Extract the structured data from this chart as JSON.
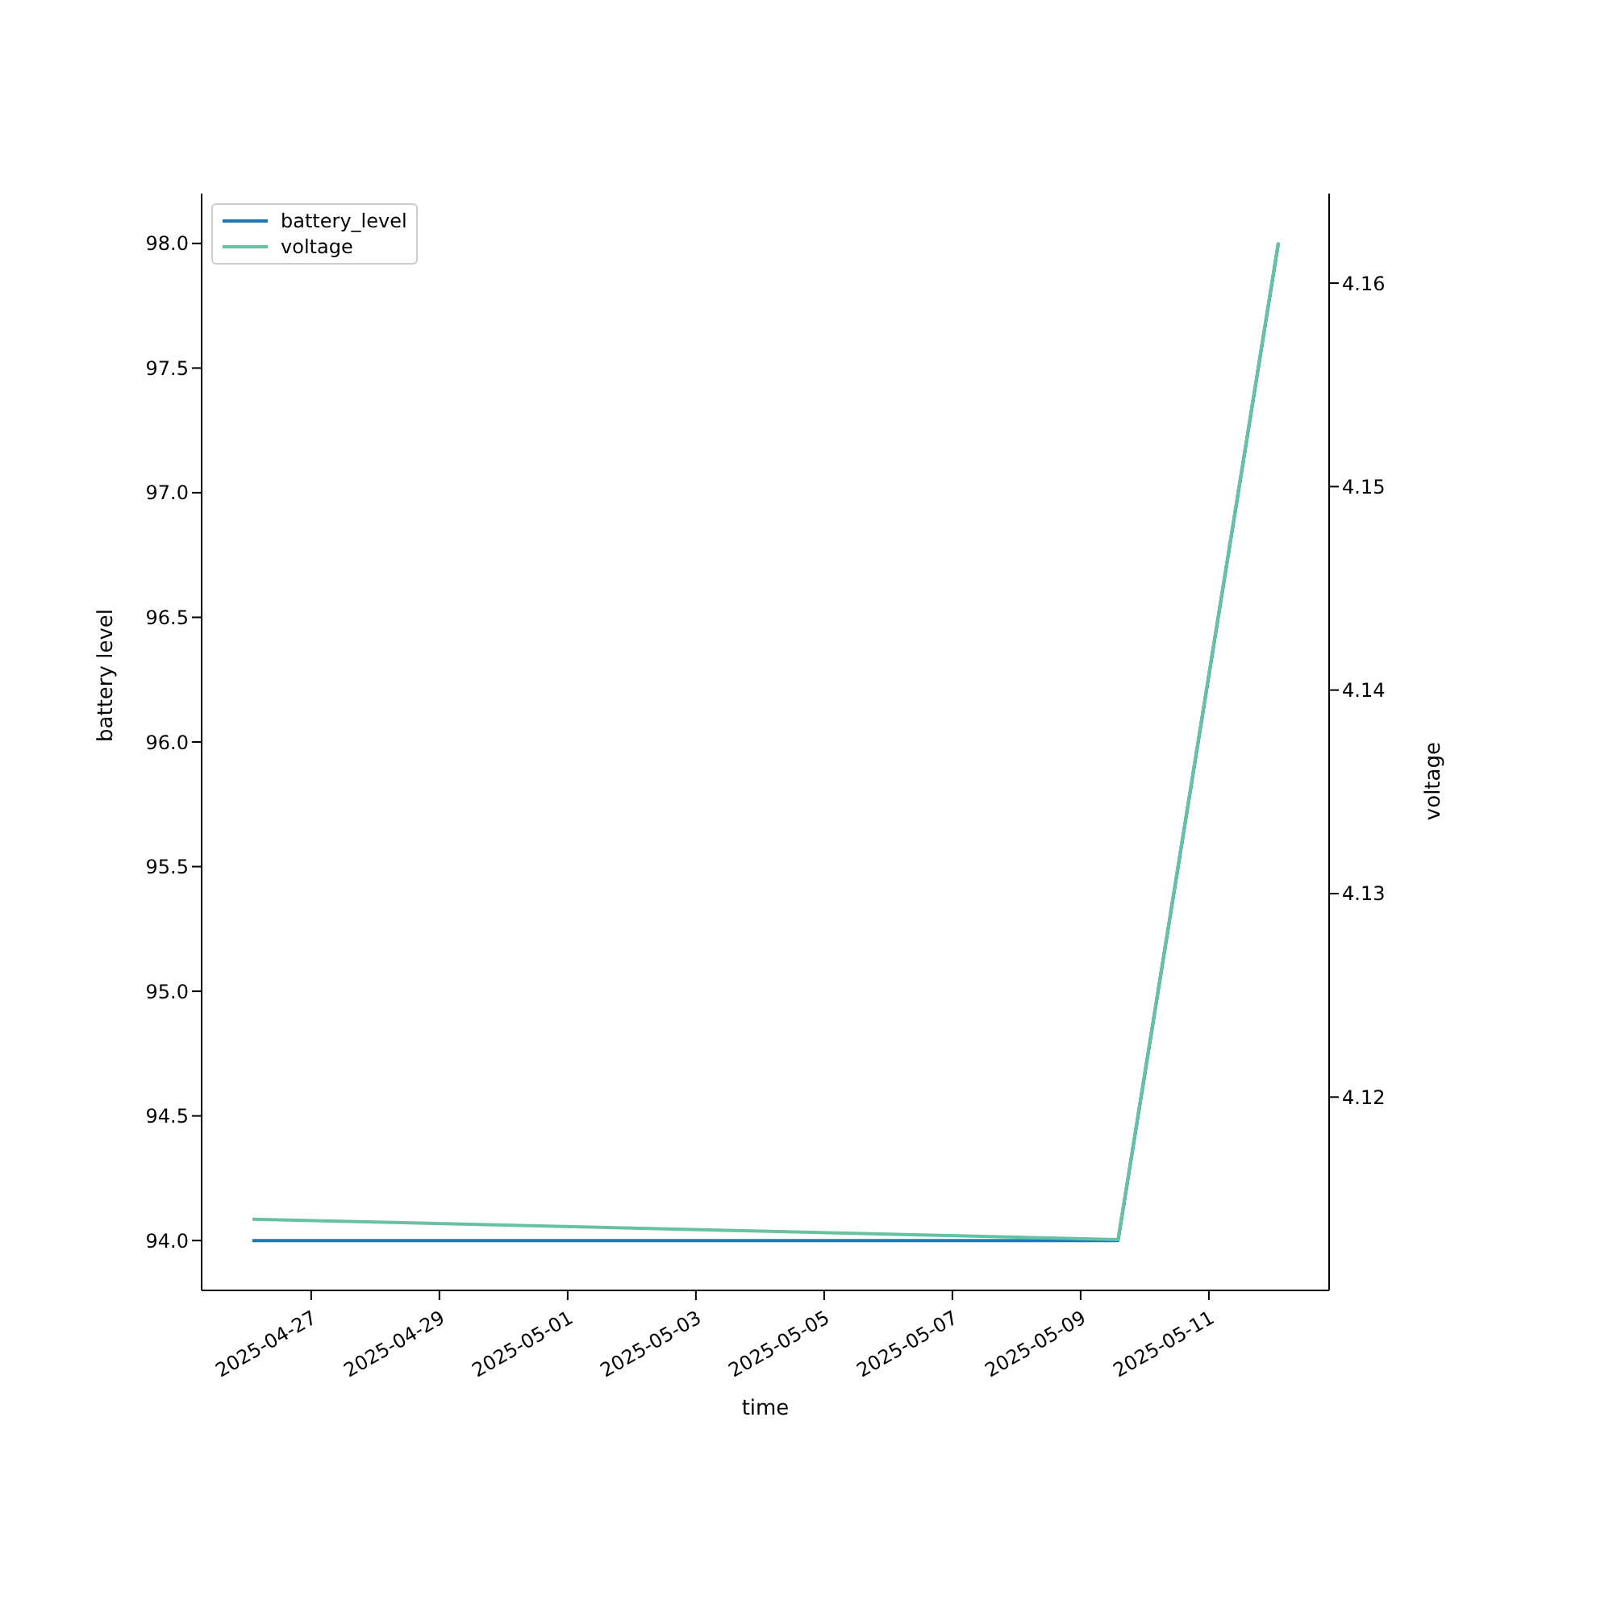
{
  "chart_data": {
    "type": "line",
    "xlabel": "time",
    "ylabel": "battery level",
    "y2label": "voltage",
    "x": [
      "2025-04-26T02:00",
      "2025-05-09T14:00",
      "2025-05-12T02:00"
    ],
    "series": [
      {
        "name": "battery_level",
        "color": "#1f77b4",
        "values": [
          94.0,
          94.0,
          98.0
        ]
      },
      {
        "name": "voltage",
        "color": "#66c2a5",
        "axis": "y2",
        "values": [
          4.114,
          4.113,
          4.162
        ]
      }
    ],
    "xlim": [
      "2025-04-25T07:00",
      "2025-05-12T21:00"
    ],
    "xticks": [
      "2025-04-27",
      "2025-04-29",
      "2025-05-01",
      "2025-05-03",
      "2025-05-05",
      "2025-05-07",
      "2025-05-09",
      "2025-05-11"
    ],
    "ylim": [
      93.8,
      98.2
    ],
    "yticks": [
      {
        "value": 94,
        "label": "94.0"
      },
      {
        "value": 94.5,
        "label": "94.5"
      },
      {
        "value": 95,
        "label": "95.0"
      },
      {
        "value": 95.5,
        "label": "95.5"
      },
      {
        "value": 96,
        "label": "96.0"
      },
      {
        "value": 96.5,
        "label": "96.5"
      },
      {
        "value": 97,
        "label": "97.0"
      },
      {
        "value": 97.5,
        "label": "97.5"
      },
      {
        "value": 98,
        "label": "98.0"
      }
    ],
    "y2lim": [
      4.1105,
      4.1644
    ],
    "y2ticks": [
      4.12,
      4.13,
      4.14,
      4.15,
      4.16
    ],
    "legend": "top left",
    "grid": false
  }
}
